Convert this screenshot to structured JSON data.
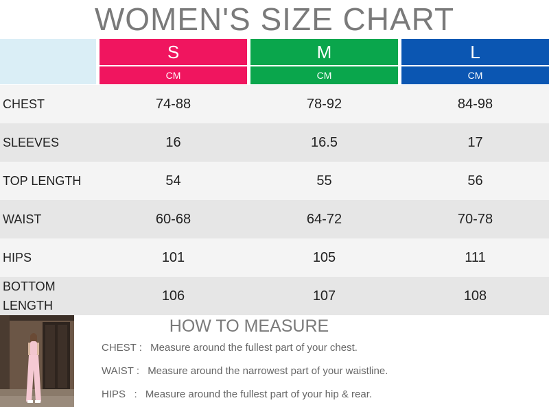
{
  "title": "WOMEN'S SIZE CHART",
  "colors": {
    "S": "#f0155f",
    "M": "#0aa64c",
    "L": "#0b56b2",
    "corner": "#daeef6",
    "row_alt": "#e6e6e6",
    "row_base": "#f4f4f4"
  },
  "sizes": [
    {
      "name": "S",
      "unit": "CM"
    },
    {
      "name": "M",
      "unit": "CM"
    },
    {
      "name": "L",
      "unit": "CM"
    }
  ],
  "rows": [
    {
      "label": "CHEST",
      "values": [
        "74-88",
        "78-92",
        "84-98"
      ]
    },
    {
      "label": "SLEEVES",
      "values": [
        "16",
        "16.5",
        "17"
      ]
    },
    {
      "label": "TOP LENGTH",
      "values": [
        "54",
        "55",
        "56"
      ]
    },
    {
      "label": "WAIST",
      "values": [
        "60-68",
        "64-72",
        "70-78"
      ]
    },
    {
      "label": "HIPS",
      "values": [
        "101",
        "105",
        "111"
      ]
    },
    {
      "label": "BOTTOM LENGTH",
      "values": [
        "106",
        "107",
        "108"
      ]
    }
  ],
  "how_to": {
    "title": "HOW TO MEASURE",
    "items": [
      {
        "key": "CHEST :",
        "text": "Measure around the fullest part of your chest."
      },
      {
        "key": "WAIST :",
        "text": "Measure around the narrowest part of your waistline."
      },
      {
        "key": "HIPS   :",
        "text": "Measure around the fullest part of your hip & rear."
      }
    ]
  }
}
